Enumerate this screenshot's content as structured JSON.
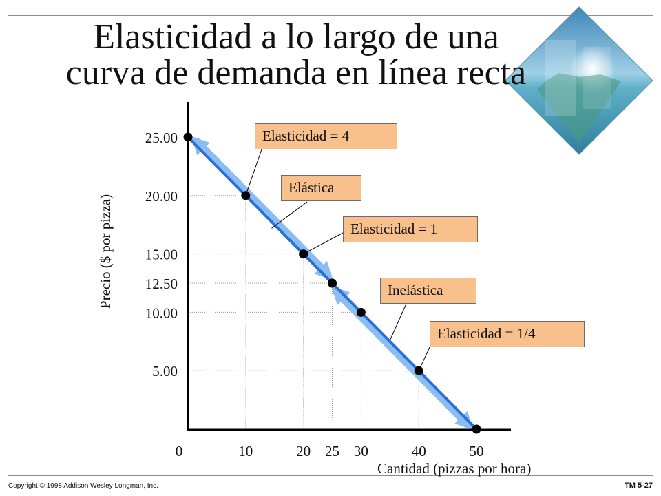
{
  "slide": {
    "title_line1": "Elasticidad a lo largo de una",
    "title_line2": "curva de demanda en línea recta",
    "footer_copyright": "Copyright © 1998 Addison Wesley Longman, Inc.",
    "footer_code": "TM 5-27"
  },
  "colors": {
    "curve": "#2a6fd6",
    "curve_band": "#8bbcf2",
    "annotation_fill": "#f7c08c",
    "annotation_border": "#6b6b6b",
    "guide": "#9a9a9a"
  },
  "chart_data": {
    "type": "line",
    "title": "",
    "xlabel": "Cantidad (pizzas por hora)",
    "ylabel": "Precio ($ por pizza)",
    "xlim": [
      0,
      50
    ],
    "ylim": [
      0,
      25
    ],
    "x_ticks": [
      "0",
      "10",
      "20",
      "25",
      "30",
      "40",
      "50"
    ],
    "x_tick_values": [
      0,
      10,
      20,
      25,
      30,
      40,
      50
    ],
    "y_ticks": [
      "5.00",
      "10.00",
      "12.50",
      "15.00",
      "20.00",
      "25.00"
    ],
    "y_tick_values": [
      5,
      10,
      12.5,
      15,
      20,
      25
    ],
    "grid": false,
    "points": [
      {
        "x": 0,
        "y": 25
      },
      {
        "x": 10,
        "y": 20
      },
      {
        "x": 20,
        "y": 15
      },
      {
        "x": 25,
        "y": 12.5
      },
      {
        "x": 30,
        "y": 10
      },
      {
        "x": 40,
        "y": 5
      },
      {
        "x": 50,
        "y": 0
      }
    ],
    "guide_points": [
      {
        "x": 10,
        "y": 20
      },
      {
        "x": 20,
        "y": 15
      },
      {
        "x": 25,
        "y": 12.5
      },
      {
        "x": 30,
        "y": 10
      },
      {
        "x": 40,
        "y": 5
      }
    ],
    "annotations": [
      {
        "text": "Elasticidad  = 4"
      },
      {
        "text": "Elástica"
      },
      {
        "text": "Elasticidad  = 1"
      },
      {
        "text": "Inelástica"
      },
      {
        "text": "Elasticidad = 1/4"
      }
    ]
  }
}
